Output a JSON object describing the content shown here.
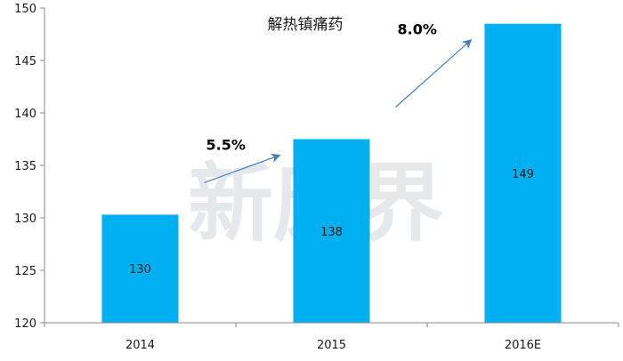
{
  "chart_data": {
    "type": "bar",
    "title": "解热镇痛药",
    "categories": [
      "2014",
      "2015",
      "2016E"
    ],
    "values": [
      130.3,
      137.5,
      148.5
    ],
    "data_labels": [
      "130",
      "138",
      "149"
    ],
    "ylim": [
      120,
      150
    ],
    "yticks": [
      120,
      125,
      130,
      135,
      140,
      145,
      150
    ],
    "xlabel": "",
    "ylabel": "",
    "grid": false,
    "legend": "none",
    "bar_color": "#00b0f0",
    "growth_annotations": [
      {
        "label": "5.5%",
        "from": "2014",
        "to": "2015"
      },
      {
        "label": "8.0%",
        "from": "2015",
        "to": "2016E"
      }
    ]
  },
  "colors": {
    "bar": "#00b0f0",
    "arrow": "#4a7ebb",
    "axis": "#888888"
  },
  "watermark": {
    "text": "新康界"
  }
}
